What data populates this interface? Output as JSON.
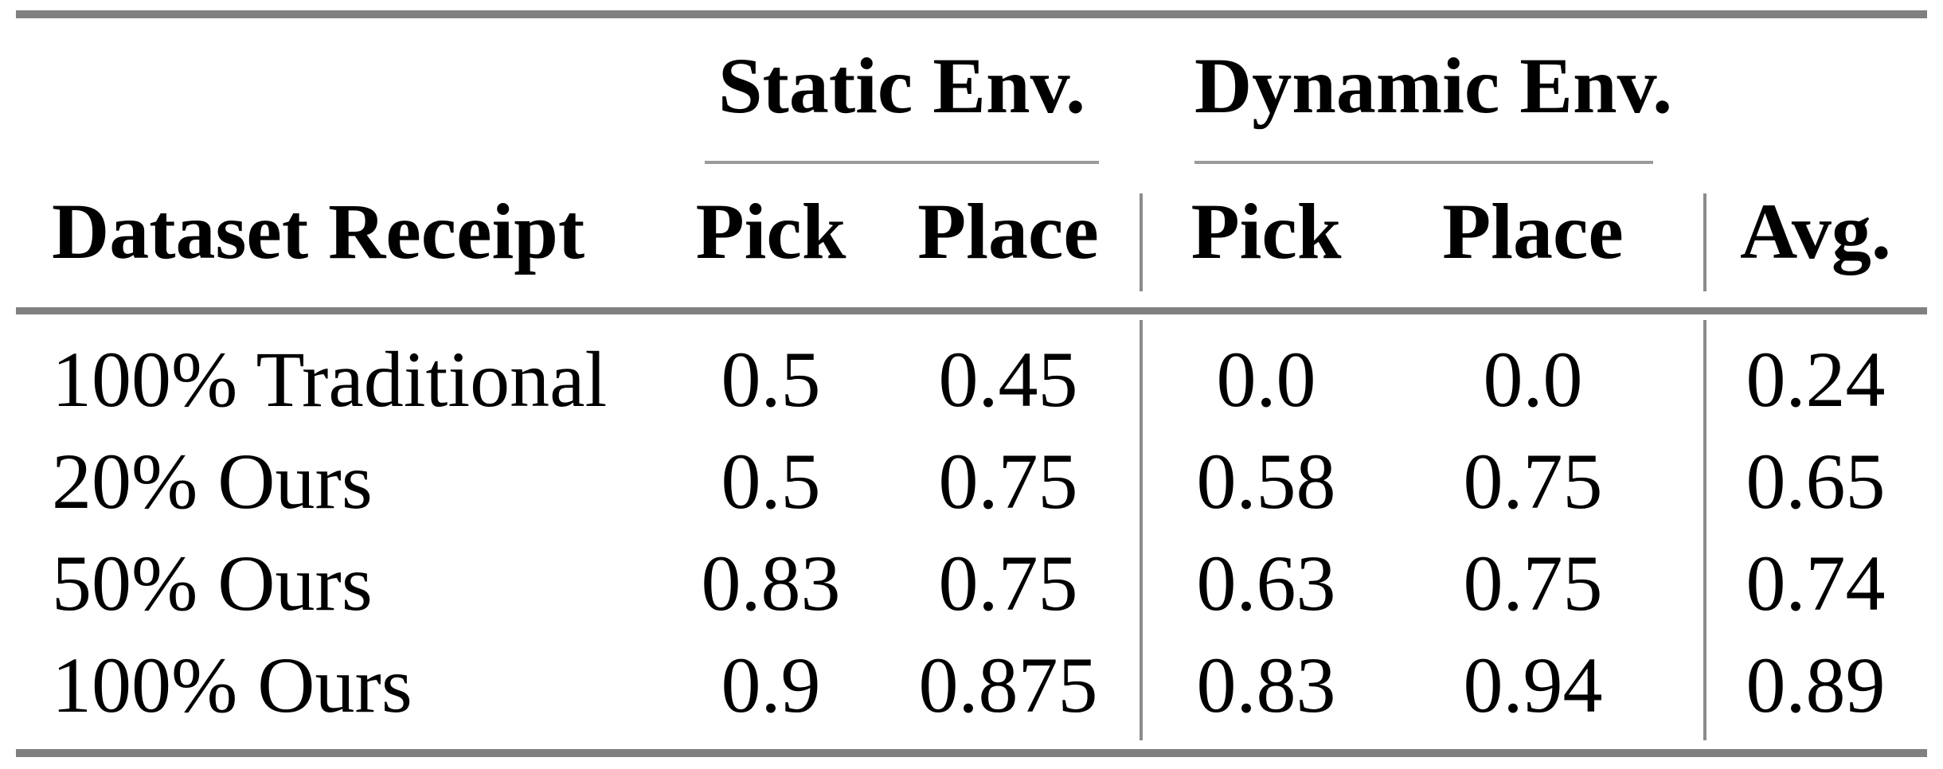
{
  "figure": {
    "kind": "results-table",
    "groups": [
      {
        "label": "Static Env."
      },
      {
        "label": "Dynamic Env."
      }
    ],
    "columns": [
      "Dataset Receipt",
      "Pick",
      "Place",
      "Pick",
      "Place",
      "Avg."
    ],
    "rows": [
      [
        "100% Traditional",
        "0.5",
        "0.45",
        "0.0",
        "0.0",
        "0.24"
      ],
      [
        "20% Ours",
        "0.5",
        "0.75",
        "0.58",
        "0.75",
        "0.65"
      ],
      [
        "50% Ours",
        "0.83",
        "0.75",
        "0.63",
        "0.75",
        "0.74"
      ],
      [
        "100% Ours",
        "0.9",
        "0.875",
        "0.83",
        "0.94",
        "0.89"
      ]
    ],
    "colors": {
      "text": "#000000",
      "background": "#ffffff",
      "rule_thick": "#808080",
      "rule_thin": "#9a9a9a",
      "vline": "#8c8c8c"
    }
  }
}
